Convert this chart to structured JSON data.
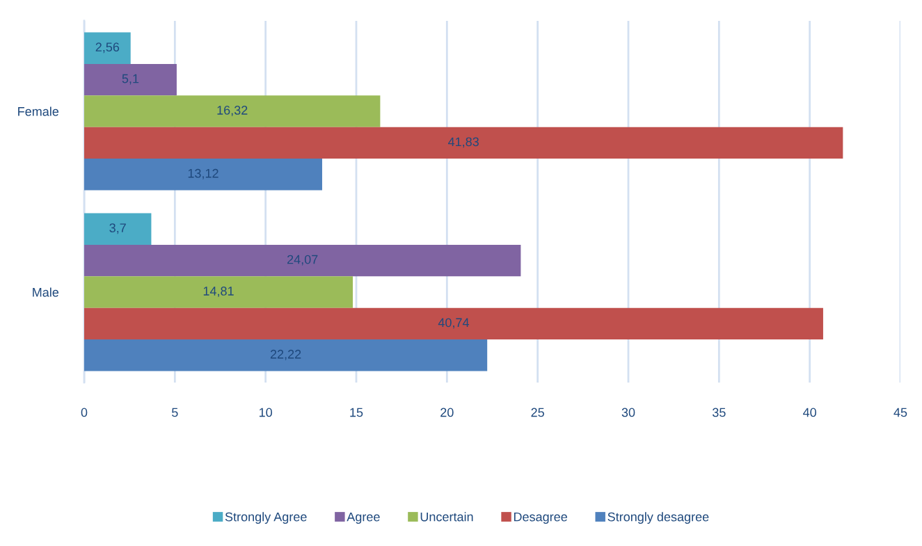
{
  "chart_data": {
    "type": "bar",
    "orientation": "horizontal",
    "categories": [
      "Female",
      "Male"
    ],
    "series": [
      {
        "name": "Strongly Agree",
        "color": "#4bacc6",
        "values": [
          2.56,
          3.7
        ],
        "value_labels": [
          "2,56",
          "3,7"
        ]
      },
      {
        "name": "Agree",
        "color": "#8064a2",
        "values": [
          5.1,
          24.07
        ],
        "value_labels": [
          "5,1",
          "24,07"
        ]
      },
      {
        "name": "Uncertain",
        "color": "#9bbb59",
        "values": [
          16.32,
          14.81
        ],
        "value_labels": [
          "16,32",
          "14,81"
        ]
      },
      {
        "name": "Desagree",
        "color": "#c0504d",
        "values": [
          41.83,
          40.74
        ],
        "value_labels": [
          "41,83",
          "40,74"
        ]
      },
      {
        "name": "Strongly desagree",
        "color": "#4f81bd",
        "values": [
          13.12,
          22.22
        ],
        "value_labels": [
          "13,12",
          "22,22"
        ]
      }
    ],
    "xlim": [
      0,
      45
    ],
    "xticks": [
      0,
      5,
      10,
      15,
      20,
      25,
      30,
      35,
      40,
      45
    ],
    "grid": "x",
    "legend": "bottom"
  }
}
